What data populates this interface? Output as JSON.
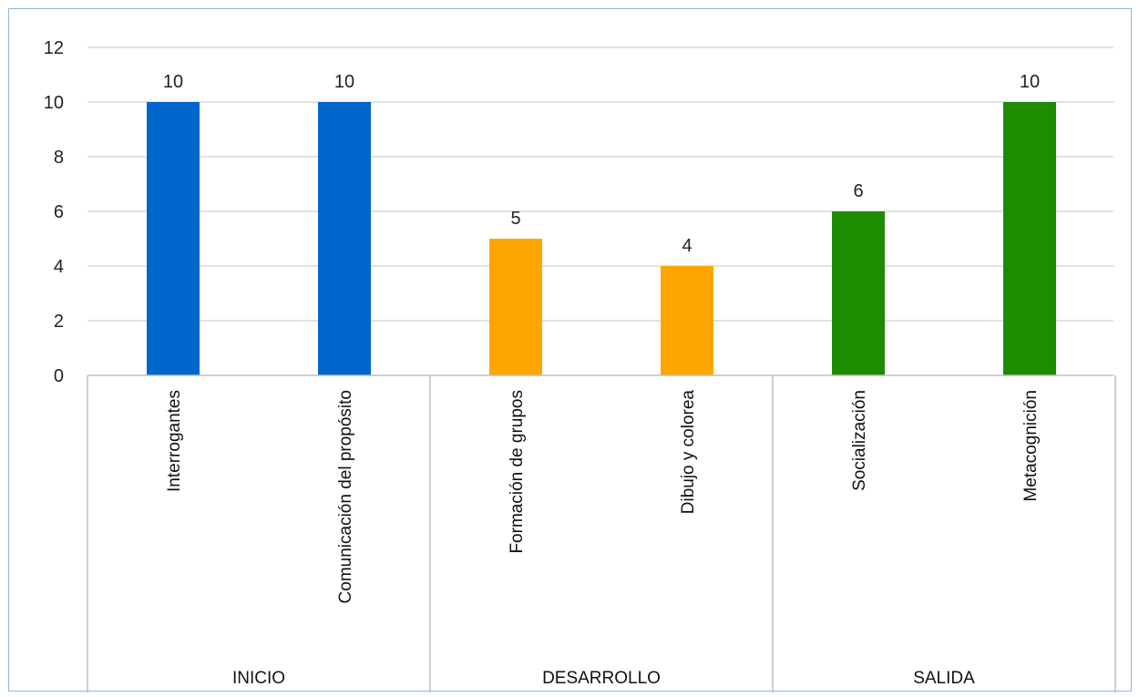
{
  "chart_data": {
    "type": "bar",
    "title": "",
    "xlabel": "",
    "ylabel": "",
    "ylim": [
      0,
      12
    ],
    "yticks": [
      0,
      2,
      4,
      6,
      8,
      10,
      12
    ],
    "grid": true,
    "legend": "none",
    "groups": [
      {
        "name": "INICIO",
        "color": "#0066cc",
        "categories": [
          "Interrogantes",
          "Comunicación del propósito"
        ],
        "values": [
          10,
          10
        ]
      },
      {
        "name": "DESARROLLO",
        "color": "#ffa500",
        "categories": [
          "Formación de grupos",
          "Dibujo y colorea"
        ],
        "values": [
          5,
          4
        ]
      },
      {
        "name": "SALIDA",
        "color": "#1e8c00",
        "categories": [
          "Socialización",
          "Metacognición"
        ],
        "values": [
          6,
          10
        ]
      }
    ]
  },
  "colors": {
    "gridline": "#d9d9d9",
    "axis": "#bfbfbf",
    "border": "#8eb4e3"
  }
}
